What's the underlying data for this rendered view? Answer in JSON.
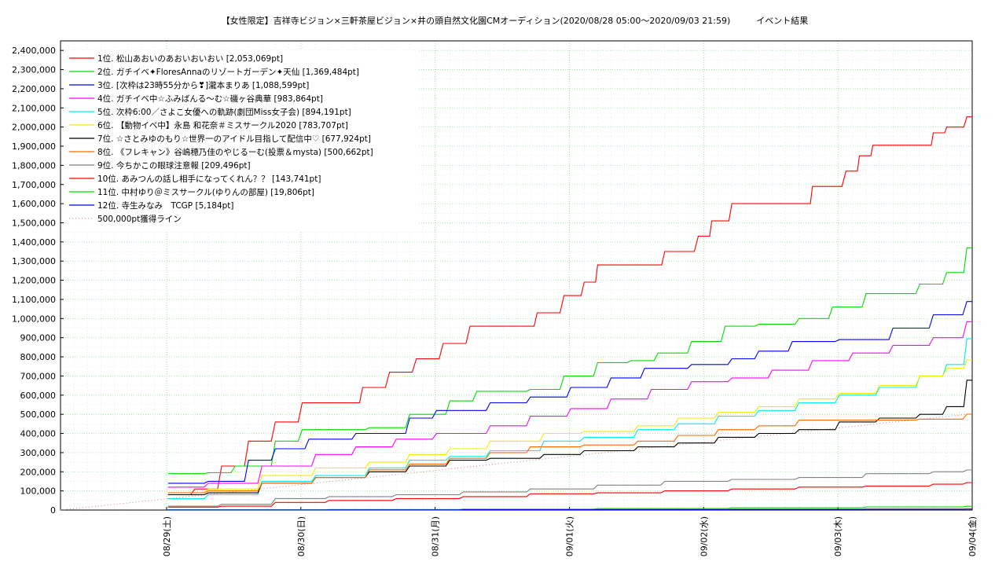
{
  "chart_data": {
    "type": "line",
    "title": "【女性限定】吉祥寺ビジョン×三軒茶屋ビジョン×井の頭自然文化園CMオーディション(2020/08/28 05:00〜2020/09/03 21:59)　　　イベント結果",
    "xlabel": "",
    "ylabel": "",
    "x_range_days": [
      0,
      6.75
    ],
    "ylim": [
      0,
      2450000
    ],
    "y_ticks": [
      0,
      100000,
      200000,
      300000,
      400000,
      500000,
      600000,
      700000,
      800000,
      900000,
      1000000,
      1100000,
      1200000,
      1300000,
      1400000,
      1500000,
      1600000,
      1700000,
      1800000,
      1900000,
      2000000,
      2100000,
      2200000,
      2300000,
      2400000
    ],
    "y_tick_labels": [
      "0",
      "100,000",
      "200,000",
      "300,000",
      "400,000",
      "500,000",
      "600,000",
      "700,000",
      "800,000",
      "900,000",
      "1,000,000",
      "1,100,000",
      "1,200,000",
      "1,300,000",
      "1,400,000",
      "1,500,000",
      "1,600,000",
      "1,700,000",
      "1,800,000",
      "1,900,000",
      "2,000,000",
      "2,100,000",
      "2,200,000",
      "2,300,000",
      "2,400,000"
    ],
    "x_ticks": [
      {
        "day": 0.79,
        "label": "08/29(土)"
      },
      {
        "day": 1.79,
        "label": "08/30(日)"
      },
      {
        "day": 2.79,
        "label": "08/31(月)"
      },
      {
        "day": 3.79,
        "label": "09/01(火)"
      },
      {
        "day": 4.79,
        "label": "09/02(水)"
      },
      {
        "day": 5.79,
        "label": "09/03(木)"
      },
      {
        "day": 6.79,
        "label": "09/04(金)"
      }
    ],
    "grid": true,
    "legend_position": "top-left",
    "series": [
      {
        "name": "1位. 松山あおいのあおいおいおい [2,053,069pt]",
        "color": "#ff0000",
        "points": [
          [
            0.8,
            80000
          ],
          [
            1.0,
            110000
          ],
          [
            1.2,
            230000
          ],
          [
            1.4,
            360000
          ],
          [
            1.6,
            460000
          ],
          [
            1.8,
            560000
          ],
          [
            2.1,
            560000
          ],
          [
            2.25,
            640000
          ],
          [
            2.45,
            720000
          ],
          [
            2.65,
            790000
          ],
          [
            2.85,
            870000
          ],
          [
            3.05,
            960000
          ],
          [
            3.4,
            960000
          ],
          [
            3.55,
            1030000
          ],
          [
            3.75,
            1120000
          ],
          [
            3.9,
            1190000
          ],
          [
            4.0,
            1280000
          ],
          [
            4.35,
            1280000
          ],
          [
            4.5,
            1350000
          ],
          [
            4.75,
            1430000
          ],
          [
            4.85,
            1510000
          ],
          [
            5.0,
            1600000
          ],
          [
            5.5,
            1600000
          ],
          [
            5.6,
            1690000
          ],
          [
            5.85,
            1770000
          ],
          [
            5.95,
            1850000
          ],
          [
            6.05,
            1905000
          ],
          [
            6.4,
            1905000
          ],
          [
            6.5,
            1970000
          ],
          [
            6.6,
            2000000
          ],
          [
            6.75,
            2053069
          ]
        ]
      },
      {
        "name": "2位. ガチイベ✦FloresAnnaのリゾートガーデン✦天仙 [1,369,484pt]",
        "color": "#00dd00",
        "points": [
          [
            0.8,
            190000
          ],
          [
            1.1,
            195000
          ],
          [
            1.3,
            230000
          ],
          [
            1.6,
            360000
          ],
          [
            1.8,
            420000
          ],
          [
            2.3,
            430000
          ],
          [
            2.6,
            500000
          ],
          [
            2.9,
            570000
          ],
          [
            3.1,
            620000
          ],
          [
            3.5,
            630000
          ],
          [
            3.75,
            700000
          ],
          [
            4.0,
            770000
          ],
          [
            4.25,
            780000
          ],
          [
            4.45,
            820000
          ],
          [
            4.7,
            880000
          ],
          [
            4.95,
            960000
          ],
          [
            5.2,
            970000
          ],
          [
            5.5,
            1000000
          ],
          [
            5.75,
            1060000
          ],
          [
            6.0,
            1130000
          ],
          [
            6.4,
            1180000
          ],
          [
            6.6,
            1240000
          ],
          [
            6.75,
            1369484
          ]
        ]
      },
      {
        "name": "3位. [次枠は23時55分から❣]瀧本まりあ [1,088,599pt]",
        "color": "#0000ee",
        "points": [
          [
            0.8,
            140000
          ],
          [
            1.1,
            150000
          ],
          [
            1.4,
            260000
          ],
          [
            1.6,
            320000
          ],
          [
            1.85,
            370000
          ],
          [
            2.2,
            400000
          ],
          [
            2.6,
            480000
          ],
          [
            2.8,
            520000
          ],
          [
            3.2,
            560000
          ],
          [
            3.5,
            590000
          ],
          [
            3.8,
            640000
          ],
          [
            4.1,
            690000
          ],
          [
            4.35,
            740000
          ],
          [
            4.7,
            760000
          ],
          [
            5.0,
            790000
          ],
          [
            5.2,
            830000
          ],
          [
            5.45,
            880000
          ],
          [
            5.8,
            890000
          ],
          [
            6.2,
            950000
          ],
          [
            6.5,
            1020000
          ],
          [
            6.75,
            1088599
          ]
        ]
      },
      {
        "name": "4位. ガチイベ中☆ふみばんる〜む☆磯ヶ谷典華 [983,864pt]",
        "color": "#ff00ff",
        "points": [
          [
            0.8,
            120000
          ],
          [
            1.1,
            140000
          ],
          [
            1.5,
            230000
          ],
          [
            1.9,
            290000
          ],
          [
            2.2,
            330000
          ],
          [
            2.5,
            370000
          ],
          [
            2.8,
            400000
          ],
          [
            3.2,
            440000
          ],
          [
            3.5,
            490000
          ],
          [
            3.8,
            530000
          ],
          [
            4.1,
            580000
          ],
          [
            4.4,
            630000
          ],
          [
            4.7,
            670000
          ],
          [
            5.0,
            690000
          ],
          [
            5.3,
            730000
          ],
          [
            5.6,
            780000
          ],
          [
            5.9,
            820000
          ],
          [
            6.2,
            860000
          ],
          [
            6.5,
            900000
          ],
          [
            6.75,
            983864
          ]
        ]
      },
      {
        "name": "5位. 次枠6:00／さよこ女優への軌跡(劇団Miss女子会) [894,191pt]",
        "color": "#00eeee",
        "points": [
          [
            0.8,
            60000
          ],
          [
            1.1,
            80000
          ],
          [
            1.5,
            150000
          ],
          [
            1.9,
            180000
          ],
          [
            2.3,
            220000
          ],
          [
            2.6,
            260000
          ],
          [
            2.9,
            280000
          ],
          [
            3.2,
            310000
          ],
          [
            3.6,
            360000
          ],
          [
            3.9,
            380000
          ],
          [
            4.3,
            420000
          ],
          [
            4.6,
            450000
          ],
          [
            4.9,
            490000
          ],
          [
            5.2,
            520000
          ],
          [
            5.5,
            560000
          ],
          [
            5.8,
            600000
          ],
          [
            6.1,
            640000
          ],
          [
            6.4,
            700000
          ],
          [
            6.6,
            760000
          ],
          [
            6.75,
            894191
          ]
        ]
      },
      {
        "name": "6位. 【動物イベ中】永島 和花奈＃ミスサークル2020 [783,707pt]",
        "color": "#eeee00",
        "points": [
          [
            0.8,
            90000
          ],
          [
            1.1,
            110000
          ],
          [
            1.5,
            180000
          ],
          [
            1.9,
            220000
          ],
          [
            2.3,
            250000
          ],
          [
            2.6,
            290000
          ],
          [
            2.9,
            320000
          ],
          [
            3.2,
            360000
          ],
          [
            3.6,
            400000
          ],
          [
            3.9,
            410000
          ],
          [
            4.3,
            440000
          ],
          [
            4.6,
            480000
          ],
          [
            4.9,
            510000
          ],
          [
            5.2,
            540000
          ],
          [
            5.5,
            580000
          ],
          [
            5.8,
            610000
          ],
          [
            6.1,
            650000
          ],
          [
            6.4,
            700000
          ],
          [
            6.6,
            740000
          ],
          [
            6.75,
            783707
          ]
        ]
      },
      {
        "name": "7位. ☆さとみゆのもり☆世界一のアイドル目指して配信中♡ [677,924pt]",
        "color": "#000000",
        "points": [
          [
            0.8,
            80000
          ],
          [
            1.1,
            90000
          ],
          [
            1.5,
            140000
          ],
          [
            1.9,
            170000
          ],
          [
            2.3,
            200000
          ],
          [
            2.6,
            230000
          ],
          [
            2.9,
            260000
          ],
          [
            3.2,
            270000
          ],
          [
            3.6,
            290000
          ],
          [
            3.9,
            310000
          ],
          [
            4.3,
            330000
          ],
          [
            4.6,
            350000
          ],
          [
            4.9,
            380000
          ],
          [
            5.2,
            400000
          ],
          [
            5.5,
            420000
          ],
          [
            5.8,
            460000
          ],
          [
            6.1,
            480000
          ],
          [
            6.4,
            500000
          ],
          [
            6.6,
            540000
          ],
          [
            6.75,
            677924
          ]
        ]
      },
      {
        "name": "8位. 《フレキャン》谷嶋穂乃佳のやじるーむ(投票＆mysta) [500,662pt]",
        "color": "#ff6600",
        "points": [
          [
            0.8,
            90000
          ],
          [
            1.1,
            100000
          ],
          [
            1.5,
            140000
          ],
          [
            1.9,
            170000
          ],
          [
            2.3,
            210000
          ],
          [
            2.6,
            240000
          ],
          [
            2.9,
            270000
          ],
          [
            3.2,
            300000
          ],
          [
            3.5,
            330000
          ],
          [
            3.9,
            340000
          ],
          [
            4.3,
            360000
          ],
          [
            4.6,
            390000
          ],
          [
            4.9,
            420000
          ],
          [
            5.2,
            440000
          ],
          [
            5.5,
            470000
          ],
          [
            5.9,
            470000
          ],
          [
            6.4,
            475000
          ],
          [
            6.75,
            500662
          ]
        ]
      },
      {
        "name": "9位. 今ちかこの眼球注意報 [209,496pt]",
        "color": "#808080",
        "points": [
          [
            0.8,
            20000
          ],
          [
            1.2,
            30000
          ],
          [
            1.6,
            60000
          ],
          [
            2.0,
            70000
          ],
          [
            2.5,
            80000
          ],
          [
            3.0,
            95000
          ],
          [
            3.5,
            110000
          ],
          [
            4.0,
            130000
          ],
          [
            4.5,
            150000
          ],
          [
            5.0,
            160000
          ],
          [
            5.5,
            170000
          ],
          [
            6.0,
            190000
          ],
          [
            6.5,
            200000
          ],
          [
            6.75,
            209496
          ]
        ]
      },
      {
        "name": "10位. あみつんの話し相手になってくれん？？ [143,741pt]",
        "color": "#ff0000",
        "points": [
          [
            0.8,
            15000
          ],
          [
            1.2,
            20000
          ],
          [
            1.6,
            40000
          ],
          [
            2.0,
            50000
          ],
          [
            2.5,
            60000
          ],
          [
            3.0,
            70000
          ],
          [
            3.5,
            85000
          ],
          [
            4.0,
            90000
          ],
          [
            4.5,
            100000
          ],
          [
            5.0,
            110000
          ],
          [
            5.5,
            120000
          ],
          [
            6.0,
            125000
          ],
          [
            6.5,
            135000
          ],
          [
            6.75,
            143741
          ]
        ]
      },
      {
        "name": "11位. 中村ゆり＠ミスサークル(ゆりんの部屋) [19,806pt]",
        "color": "#00dd00",
        "points": [
          [
            0.8,
            2000
          ],
          [
            2.0,
            3000
          ],
          [
            3.0,
            5000
          ],
          [
            4.0,
            8000
          ],
          [
            5.0,
            12000
          ],
          [
            6.0,
            16000
          ],
          [
            6.75,
            19806
          ]
        ]
      },
      {
        "name": "12位. 寺生みなみ　TCGP [5,184pt]",
        "color": "#0000ee",
        "points": [
          [
            0.8,
            500
          ],
          [
            2.0,
            1000
          ],
          [
            3.0,
            2000
          ],
          [
            4.0,
            3000
          ],
          [
            5.0,
            4000
          ],
          [
            6.0,
            4800
          ],
          [
            6.75,
            5184
          ]
        ]
      }
    ],
    "reference_line": {
      "name": "500,000pt獲得ライン",
      "color": "#d08080",
      "points": [
        [
          0,
          0
        ],
        [
          6.75,
          500000
        ]
      ]
    }
  }
}
